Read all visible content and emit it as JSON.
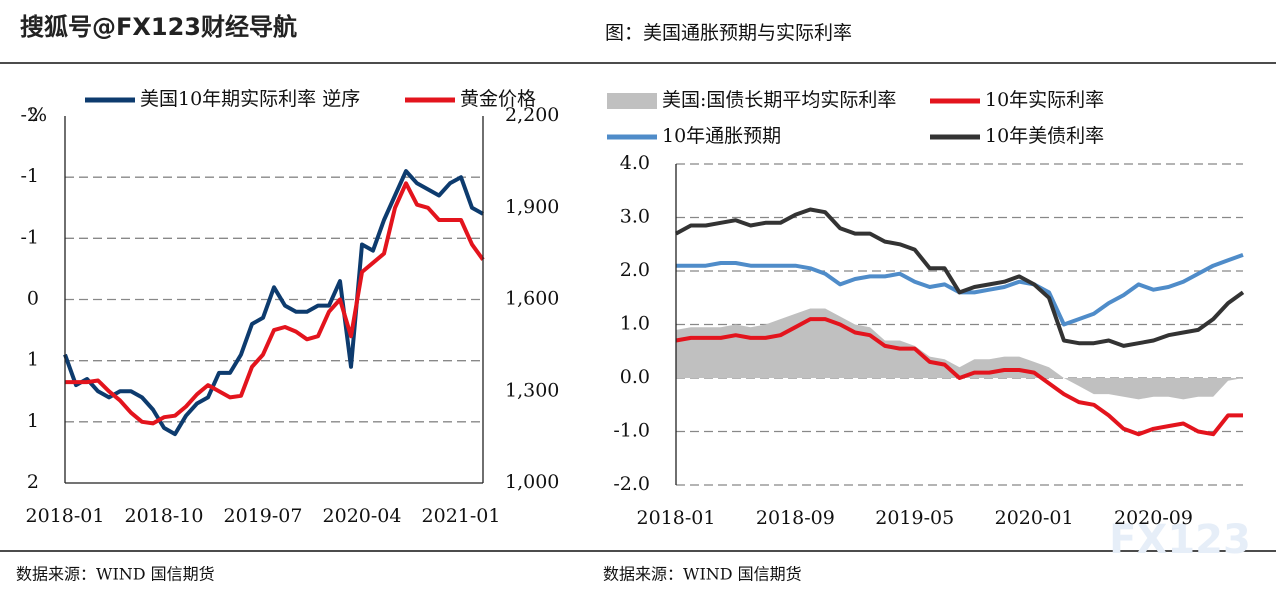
{
  "watermark": "搜狐号@FX123财经导航",
  "logo_watermark": "FX123",
  "chart_data": [
    {
      "type": "line",
      "y_unit": "%",
      "source": "数据来源：WIND 国信期货",
      "x": [
        "2018-01",
        "2018-02",
        "2018-03",
        "2018-04",
        "2018-05",
        "2018-06",
        "2018-07",
        "2018-08",
        "2018-09",
        "2018-10",
        "2018-11",
        "2018-12",
        "2019-01",
        "2019-02",
        "2019-03",
        "2019-04",
        "2019-05",
        "2019-06",
        "2019-07",
        "2019-08",
        "2019-09",
        "2019-10",
        "2019-11",
        "2019-12",
        "2020-01",
        "2020-02",
        "2020-03",
        "2020-04",
        "2020-05",
        "2020-06",
        "2020-07",
        "2020-08",
        "2020-09",
        "2020-10",
        "2020-11",
        "2020-12",
        "2021-01",
        "2021-02",
        "2021-03"
      ],
      "xlim": [
        "2018-01",
        "2021-03"
      ],
      "xticks": [
        "2018-01",
        "2018-10",
        "2019-07",
        "2020-04",
        "2021-01"
      ],
      "ylim": [
        -1.5,
        1.5
      ],
      "y_reversed": true,
      "yticks": [
        {
          "value": -1.5,
          "label": "-2"
        },
        {
          "value": -1,
          "label": "-1"
        },
        {
          "value": -0.5,
          "label": "-1"
        },
        0,
        {
          "value": 0.5,
          "label": "1"
        },
        {
          "value": 1,
          "label": "1"
        },
        {
          "value": 1.5,
          "label": "2"
        }
      ],
      "y2lim": [
        1000,
        2200
      ],
      "y2ticks": [
        {
          "value": 1000,
          "label": "1,000"
        },
        {
          "value": 1300,
          "label": "1,300"
        },
        {
          "value": 1600,
          "label": "1,600"
        },
        {
          "value": 1900,
          "label": "1,900"
        },
        {
          "value": 2200,
          "label": "2,200"
        }
      ],
      "grid": true,
      "series": [
        {
          "name": "美国10年期实际利率 逆序",
          "color": "#0d3b6e",
          "values": [
            0.45,
            0.7,
            0.65,
            0.75,
            0.8,
            0.75,
            0.75,
            0.8,
            0.9,
            1.05,
            1.1,
            0.95,
            0.85,
            0.8,
            0.6,
            0.6,
            0.45,
            0.2,
            0.15,
            -0.1,
            0.05,
            0.1,
            0.1,
            0.05,
            0.05,
            -0.15,
            0.55,
            -0.45,
            -0.4,
            -0.65,
            -0.85,
            -1.05,
            -0.95,
            -0.9,
            -0.85,
            -0.95,
            -1.0,
            -0.75,
            -0.7
          ]
        },
        {
          "name": "黄金价格",
          "color": "#e3141d",
          "axis": "y2",
          "values": [
            1330,
            1330,
            1330,
            1335,
            1300,
            1270,
            1230,
            1200,
            1195,
            1215,
            1220,
            1250,
            1290,
            1320,
            1300,
            1280,
            1285,
            1380,
            1420,
            1500,
            1510,
            1495,
            1470,
            1480,
            1560,
            1600,
            1480,
            1690,
            1720,
            1750,
            1900,
            1980,
            1910,
            1900,
            1860,
            1860,
            1860,
            1780,
            1730
          ]
        }
      ]
    },
    {
      "type": "line",
      "title": "图：美国通胀预期与实际利率",
      "source": "数据来源：WIND 国信期货",
      "x": [
        "2018-01",
        "2018-02",
        "2018-03",
        "2018-04",
        "2018-05",
        "2018-06",
        "2018-07",
        "2018-08",
        "2018-09",
        "2018-10",
        "2018-11",
        "2018-12",
        "2019-01",
        "2019-02",
        "2019-03",
        "2019-04",
        "2019-05",
        "2019-06",
        "2019-07",
        "2019-08",
        "2019-09",
        "2019-10",
        "2019-11",
        "2019-12",
        "2020-01",
        "2020-02",
        "2020-03",
        "2020-04",
        "2020-05",
        "2020-06",
        "2020-07",
        "2020-08",
        "2020-09",
        "2020-10",
        "2020-11",
        "2020-12",
        "2021-01",
        "2021-02",
        "2021-03"
      ],
      "xlim": [
        "2018-01",
        "2021-03"
      ],
      "xticks": [
        "2018-01",
        "2018-09",
        "2019-05",
        "2020-01",
        "2020-09"
      ],
      "ylim": [
        -2,
        4
      ],
      "yticks": [
        {
          "value": -2,
          "label": "-2.0"
        },
        {
          "value": -1,
          "label": "-1.0"
        },
        {
          "value": 0,
          "label": "0.0"
        },
        {
          "value": 1,
          "label": "1.0"
        },
        {
          "value": 2,
          "label": "2.0"
        },
        {
          "value": 3,
          "label": "3.0"
        },
        {
          "value": 4,
          "label": "4.0"
        }
      ],
      "grid": true,
      "series": [
        {
          "name": "美国:国债长期平均实际利率",
          "color": "#c0c0c0",
          "type": "area",
          "values": [
            0.9,
            0.95,
            0.95,
            0.95,
            1.0,
            0.95,
            1.0,
            1.1,
            1.2,
            1.3,
            1.3,
            1.15,
            1.0,
            0.95,
            0.7,
            0.7,
            0.6,
            0.4,
            0.35,
            0.2,
            0.35,
            0.35,
            0.4,
            0.4,
            0.3,
            0.2,
            0.0,
            -0.15,
            -0.3,
            -0.3,
            -0.35,
            -0.4,
            -0.35,
            -0.35,
            -0.4,
            -0.35,
            -0.35,
            -0.05,
            0.0
          ]
        },
        {
          "name": "10年实际利率",
          "color": "#e3141d",
          "values": [
            0.7,
            0.75,
            0.75,
            0.75,
            0.8,
            0.75,
            0.75,
            0.8,
            0.95,
            1.1,
            1.1,
            1.0,
            0.85,
            0.8,
            0.6,
            0.55,
            0.55,
            0.3,
            0.25,
            0.0,
            0.1,
            0.1,
            0.15,
            0.15,
            0.1,
            -0.1,
            -0.3,
            -0.45,
            -0.5,
            -0.7,
            -0.95,
            -1.05,
            -0.95,
            -0.9,
            -0.85,
            -1.0,
            -1.05,
            -0.7,
            -0.7
          ]
        },
        {
          "name": "10年通胀预期",
          "color": "#4f8cc9",
          "values": [
            2.1,
            2.1,
            2.1,
            2.15,
            2.15,
            2.1,
            2.1,
            2.1,
            2.1,
            2.05,
            1.95,
            1.75,
            1.85,
            1.9,
            1.9,
            1.95,
            1.8,
            1.7,
            1.75,
            1.6,
            1.6,
            1.65,
            1.7,
            1.8,
            1.75,
            1.6,
            1.0,
            1.1,
            1.2,
            1.4,
            1.55,
            1.75,
            1.65,
            1.7,
            1.8,
            1.95,
            2.1,
            2.2,
            2.3
          ]
        },
        {
          "name": "10年美债利率",
          "color": "#333333",
          "values": [
            2.7,
            2.85,
            2.85,
            2.9,
            2.95,
            2.85,
            2.9,
            2.9,
            3.05,
            3.15,
            3.1,
            2.8,
            2.7,
            2.7,
            2.55,
            2.5,
            2.4,
            2.05,
            2.05,
            1.6,
            1.7,
            1.75,
            1.8,
            1.9,
            1.75,
            1.5,
            0.7,
            0.65,
            0.65,
            0.7,
            0.6,
            0.65,
            0.7,
            0.8,
            0.85,
            0.9,
            1.1,
            1.4,
            1.6
          ]
        }
      ]
    }
  ]
}
